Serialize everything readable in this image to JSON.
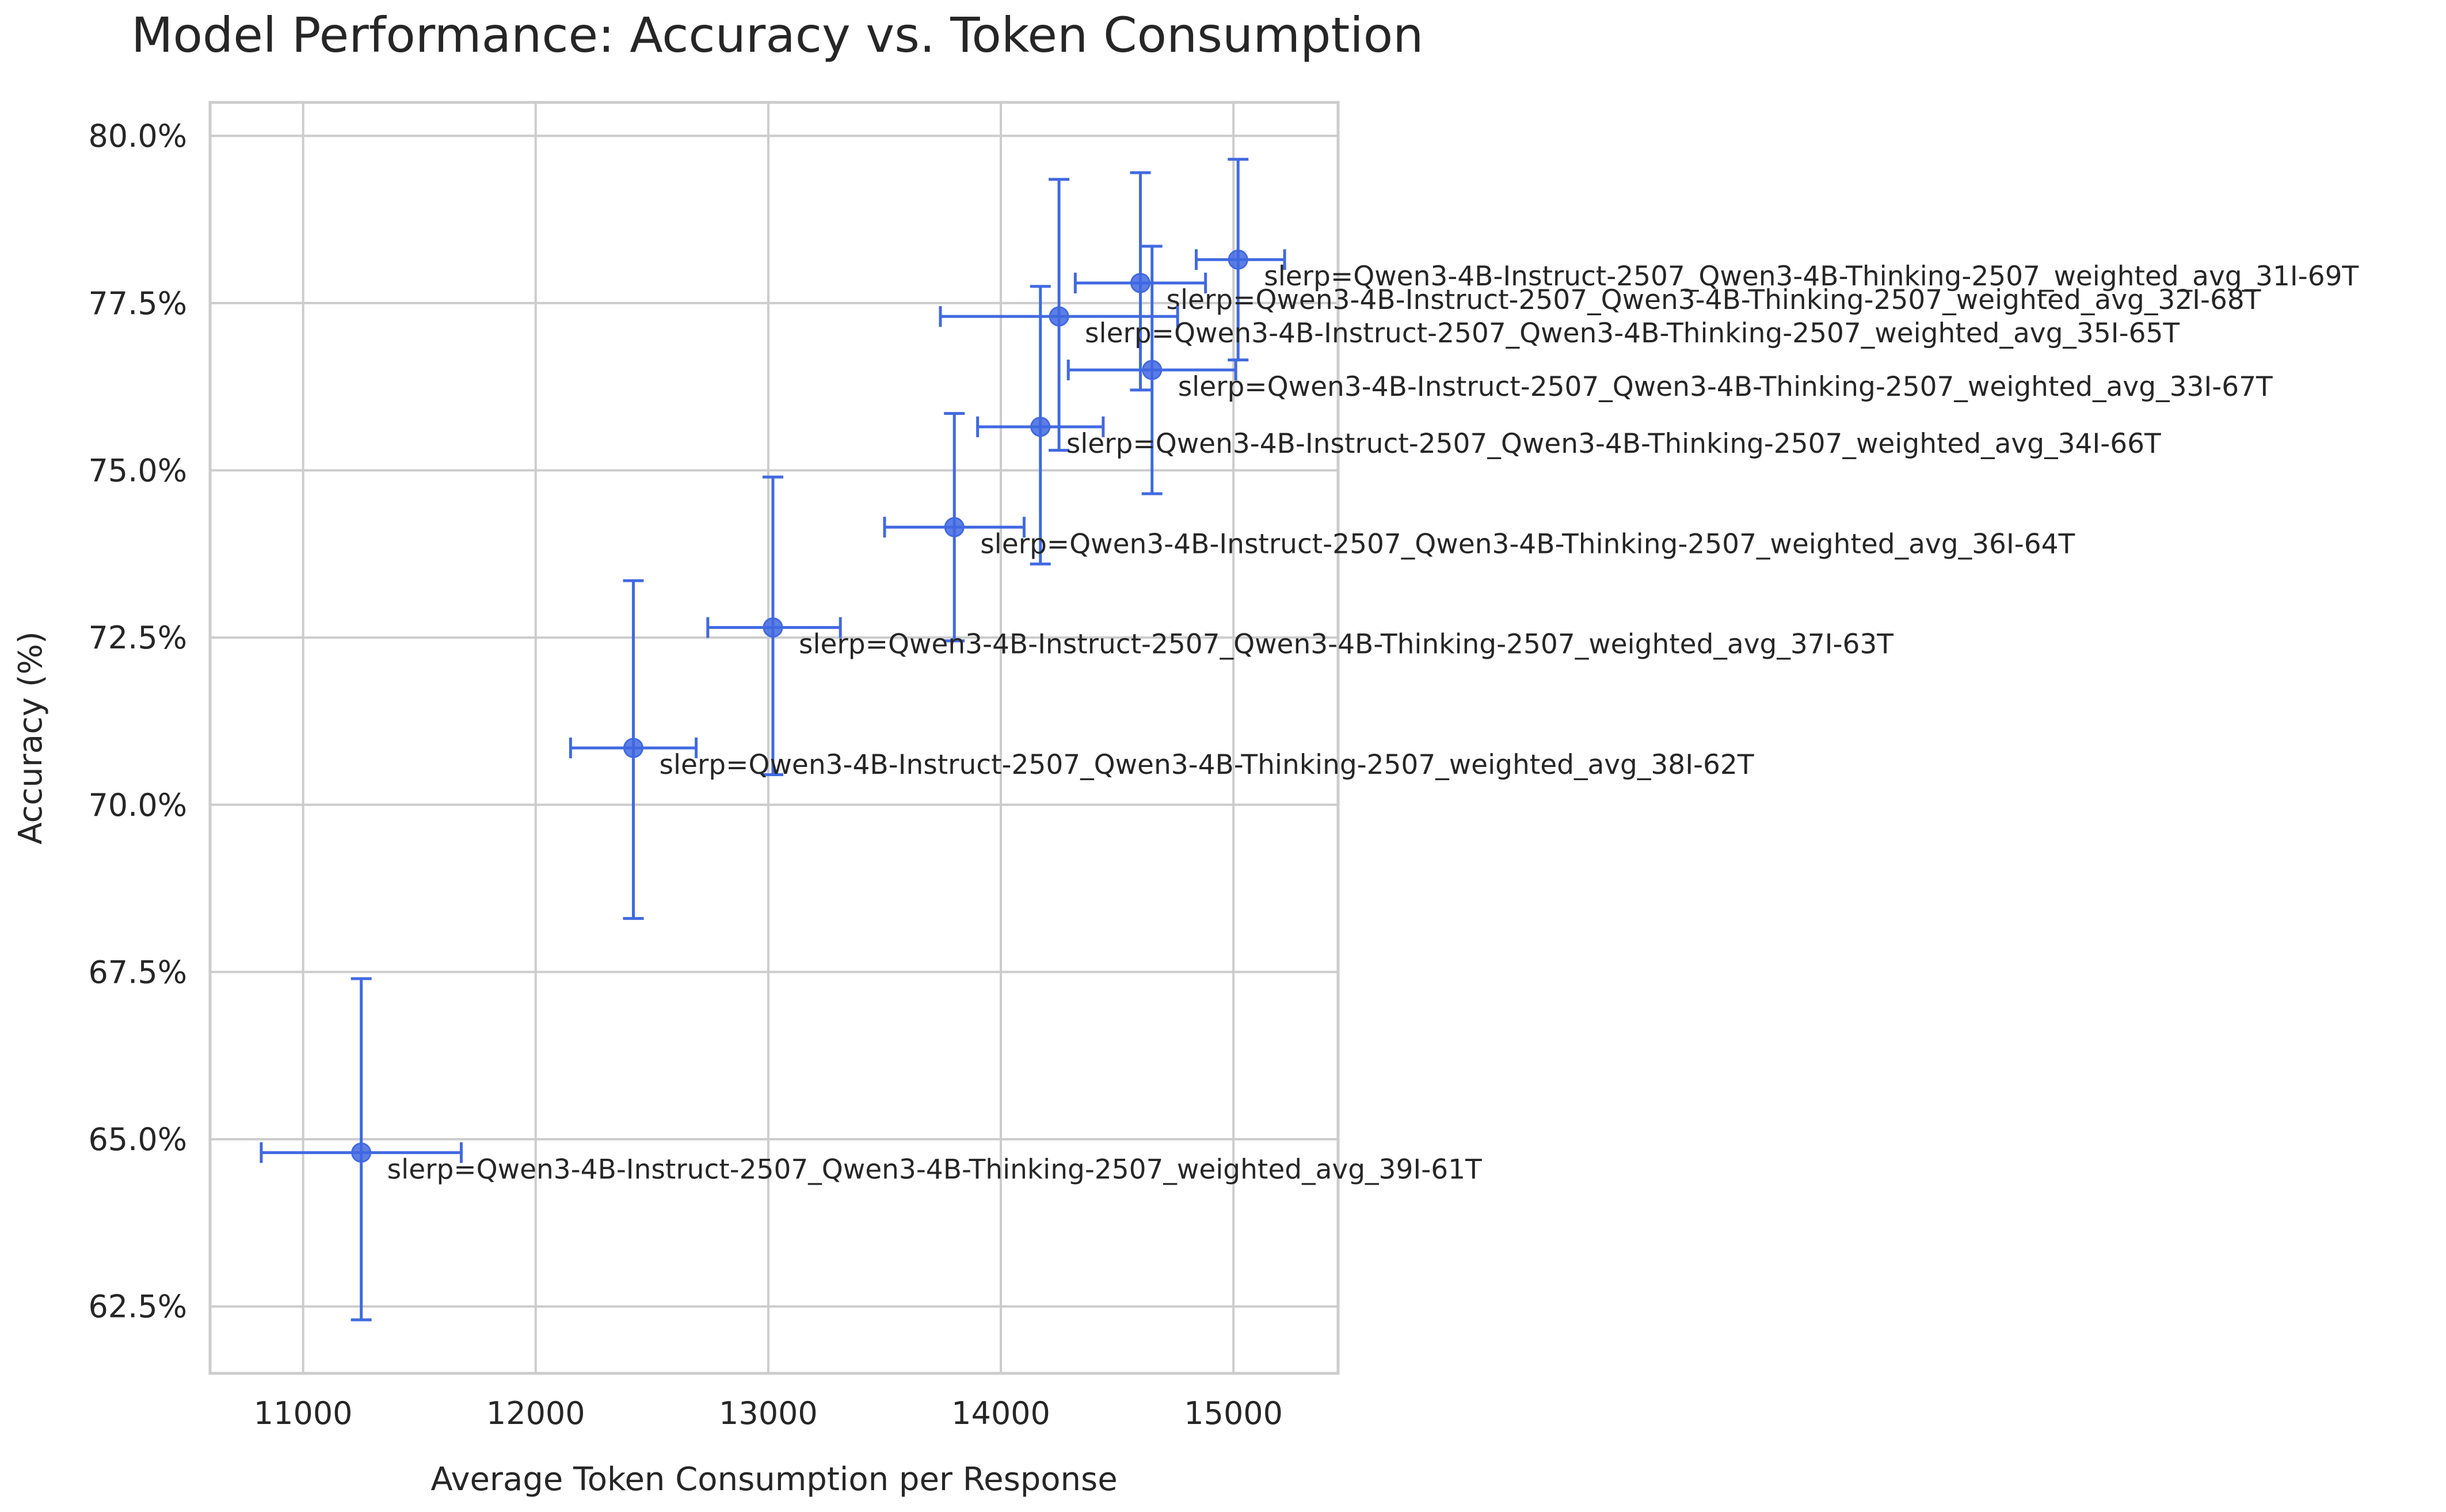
{
  "chart_data": {
    "type": "scatter",
    "title": "Model Performance: Accuracy vs. Token Consumption",
    "xlabel": "Average Token Consumption per Response",
    "ylabel": "Accuracy (%)",
    "xlim": [
      10600,
      15450
    ],
    "ylim": [
      61.5,
      80.5
    ],
    "x_ticks": [
      11000,
      12000,
      13000,
      14000,
      15000
    ],
    "x_tick_labels": [
      "11000",
      "12000",
      "13000",
      "14000",
      "15000"
    ],
    "y_ticks": [
      62.5,
      65.0,
      67.5,
      70.0,
      72.5,
      75.0,
      77.5,
      80.0
    ],
    "y_tick_labels": [
      "62.5%",
      "65.0%",
      "67.5%",
      "70.0%",
      "72.5%",
      "75.0%",
      "77.5%",
      "80.0%"
    ],
    "grid": true,
    "color": "#4169e1",
    "points": [
      {
        "label": "slerp=Qwen3-4B-Instruct-2507_Qwen3-4B-Thinking-2507_weighted_avg_31I-69T",
        "x": 15020,
        "y": 78.15,
        "xerr_low": 14840,
        "xerr_high": 15220,
        "yerr_low": 76.65,
        "yerr_high": 79.65
      },
      {
        "label": "slerp=Qwen3-4B-Instruct-2507_Qwen3-4B-Thinking-2507_weighted_avg_32I-68T",
        "x": 14600,
        "y": 77.8,
        "xerr_low": 14320,
        "xerr_high": 14880,
        "yerr_low": 76.2,
        "yerr_high": 79.45
      },
      {
        "label": "slerp=Qwen3-4B-Instruct-2507_Qwen3-4B-Thinking-2507_weighted_avg_35I-65T",
        "x": 14250,
        "y": 77.3,
        "xerr_low": 13740,
        "xerr_high": 14760,
        "yerr_low": 75.3,
        "yerr_high": 79.35
      },
      {
        "label": "slerp=Qwen3-4B-Instruct-2507_Qwen3-4B-Thinking-2507_weighted_avg_33I-67T",
        "x": 14650,
        "y": 76.5,
        "xerr_low": 14290,
        "xerr_high": 15010,
        "yerr_low": 74.65,
        "yerr_high": 78.35
      },
      {
        "label": "slerp=Qwen3-4B-Instruct-2507_Qwen3-4B-Thinking-2507_weighted_avg_34I-66T",
        "x": 14170,
        "y": 75.65,
        "xerr_low": 13900,
        "xerr_high": 14440,
        "yerr_low": 73.6,
        "yerr_high": 77.75
      },
      {
        "label": "slerp=Qwen3-4B-Instruct-2507_Qwen3-4B-Thinking-2507_weighted_avg_36I-64T",
        "x": 13800,
        "y": 74.15,
        "xerr_low": 13500,
        "xerr_high": 14100,
        "yerr_low": 72.45,
        "yerr_high": 75.85
      },
      {
        "label": "slerp=Qwen3-4B-Instruct-2507_Qwen3-4B-Thinking-2507_weighted_avg_37I-63T",
        "x": 13020,
        "y": 72.65,
        "xerr_low": 12740,
        "xerr_high": 13310,
        "yerr_low": 70.45,
        "yerr_high": 74.9
      },
      {
        "label": "slerp=Qwen3-4B-Instruct-2507_Qwen3-4B-Thinking-2507_weighted_avg_38I-62T",
        "x": 12420,
        "y": 70.85,
        "xerr_low": 12150,
        "xerr_high": 12690,
        "yerr_low": 68.3,
        "yerr_high": 73.35
      },
      {
        "label": "slerp=Qwen3-4B-Instruct-2507_Qwen3-4B-Thinking-2507_weighted_avg_39I-61T",
        "x": 11250,
        "y": 64.8,
        "xerr_low": 10820,
        "xerr_high": 11680,
        "yerr_low": 62.3,
        "yerr_high": 67.4
      }
    ]
  }
}
